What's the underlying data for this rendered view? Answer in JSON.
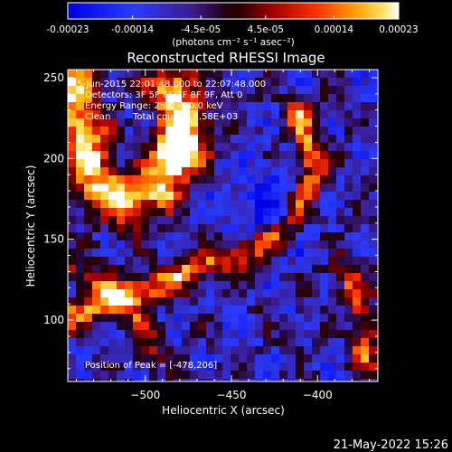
{
  "colorbar": {
    "tick_labels": [
      "-0.00023",
      "-0.00014",
      "-4.5e-05",
      "4.5e-05",
      "0.00014",
      "0.00023"
    ],
    "tick_values": [
      -0.00023,
      -0.00014,
      -4.5e-05,
      4.5e-05,
      0.00014,
      0.00023
    ],
    "range": [
      -0.00023,
      0.00023
    ],
    "units": "(photons cm⁻² s⁻¹ asec⁻²)"
  },
  "chart_data": {
    "type": "heatmap",
    "title": "Reconstructed RHESSI Image",
    "xlabel": "Heliocentric X (arcsec)",
    "ylabel": "Heliocentric Y (arcsec)",
    "xlim": [
      -545,
      -365
    ],
    "ylim": [
      62,
      255
    ],
    "xticks": [
      -500,
      -450,
      -400
    ],
    "xtick_labels": [
      "−500",
      "−450",
      "−400"
    ],
    "yticks": [
      100,
      150,
      200,
      250
    ],
    "ytick_labels": [
      "100",
      "150",
      "200",
      "250"
    ],
    "grid": false,
    "colormap": "rhessi-blue-to-hot",
    "annotations": {
      "time_range": "5-Jun-2015 22:01:48.000 to 22:07:48.000",
      "detectors": "Detectors: 3F 5F 6F 7F 8F 9F, Att 0",
      "energy_range": "Energy Range: 25.0 - 50.0 keV",
      "clean": "Clean",
      "total_counts": "Total counts: 8.58E+03",
      "peak": "Position of Peak = [-478,206]"
    },
    "peak_position": [
      -478,
      206
    ]
  },
  "timestamp": "21-May-2022 15:26"
}
